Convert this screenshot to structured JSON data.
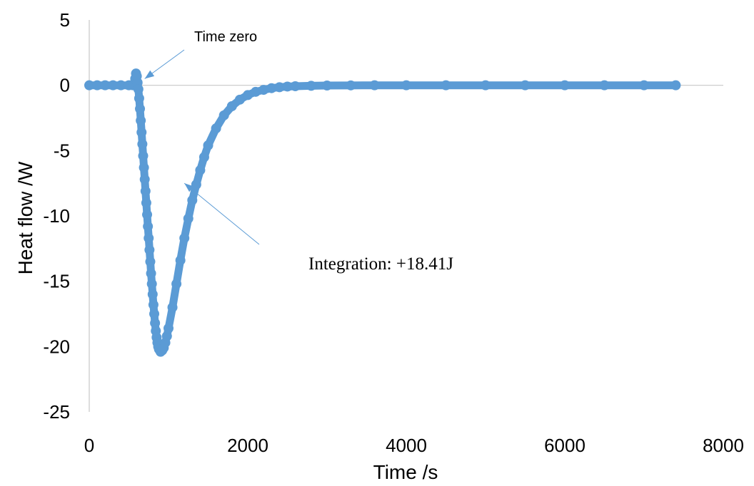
{
  "chart_data": {
    "type": "scatter",
    "xlabel": "Time /s",
    "ylabel": "Heat flow /W",
    "xlim": [
      0,
      8000
    ],
    "ylim": [
      -25,
      5
    ],
    "xticks": [
      0,
      2000,
      4000,
      6000,
      8000
    ],
    "yticks": [
      5,
      0,
      -5,
      -10,
      -15,
      -20,
      -25
    ],
    "grid": false,
    "series": [
      {
        "color": "#5b9bd5",
        "points": [
          [
            0,
            0
          ],
          [
            100,
            0
          ],
          [
            200,
            0
          ],
          [
            300,
            0
          ],
          [
            400,
            0
          ],
          [
            500,
            0
          ],
          [
            550,
            0
          ],
          [
            580,
            0.5
          ],
          [
            590,
            0.9
          ],
          [
            600,
            0.7
          ],
          [
            610,
            0.2
          ],
          [
            620,
            -0.3
          ],
          [
            630,
            -1.0
          ],
          [
            640,
            -1.8
          ],
          [
            650,
            -2.7
          ],
          [
            660,
            -3.6
          ],
          [
            670,
            -4.5
          ],
          [
            680,
            -5.4
          ],
          [
            690,
            -6.3
          ],
          [
            700,
            -7.2
          ],
          [
            710,
            -8.1
          ],
          [
            720,
            -9.0
          ],
          [
            730,
            -9.9
          ],
          [
            740,
            -10.8
          ],
          [
            750,
            -11.7
          ],
          [
            760,
            -12.6
          ],
          [
            770,
            -13.5
          ],
          [
            780,
            -14.4
          ],
          [
            790,
            -15.2
          ],
          [
            800,
            -16.0
          ],
          [
            810,
            -16.8
          ],
          [
            820,
            -17.5
          ],
          [
            830,
            -18.2
          ],
          [
            840,
            -18.8
          ],
          [
            850,
            -19.3
          ],
          [
            860,
            -19.7
          ],
          [
            870,
            -20.0
          ],
          [
            880,
            -20.2
          ],
          [
            900,
            -20.4
          ],
          [
            920,
            -20.3
          ],
          [
            940,
            -20.1
          ],
          [
            960,
            -19.7
          ],
          [
            980,
            -19.2
          ],
          [
            1000,
            -18.6
          ],
          [
            1050,
            -17.0
          ],
          [
            1100,
            -15.2
          ],
          [
            1150,
            -13.4
          ],
          [
            1200,
            -11.7
          ],
          [
            1250,
            -10.2
          ],
          [
            1300,
            -8.8
          ],
          [
            1350,
            -7.6
          ],
          [
            1400,
            -6.5
          ],
          [
            1450,
            -5.5
          ],
          [
            1500,
            -4.6
          ],
          [
            1600,
            -3.3
          ],
          [
            1700,
            -2.3
          ],
          [
            1800,
            -1.6
          ],
          [
            1900,
            -1.1
          ],
          [
            2000,
            -0.75
          ],
          [
            2100,
            -0.5
          ],
          [
            2200,
            -0.35
          ],
          [
            2300,
            -0.22
          ],
          [
            2400,
            -0.15
          ],
          [
            2500,
            -0.1
          ],
          [
            2600,
            -0.07
          ],
          [
            2800,
            -0.04
          ],
          [
            3000,
            -0.02
          ],
          [
            3300,
            -0.01
          ],
          [
            3600,
            0
          ],
          [
            4000,
            0
          ],
          [
            4500,
            0
          ],
          [
            5000,
            0
          ],
          [
            5500,
            0
          ],
          [
            6000,
            0
          ],
          [
            6500,
            0
          ],
          [
            7000,
            0
          ],
          [
            7400,
            0
          ]
        ]
      }
    ],
    "annotations": [
      {
        "text": "Time zero",
        "arrow_to": [
          700,
          0.5
        ]
      },
      {
        "text": "Integration: +18.41J",
        "arrow_to": [
          1200,
          -7.5
        ]
      }
    ]
  }
}
